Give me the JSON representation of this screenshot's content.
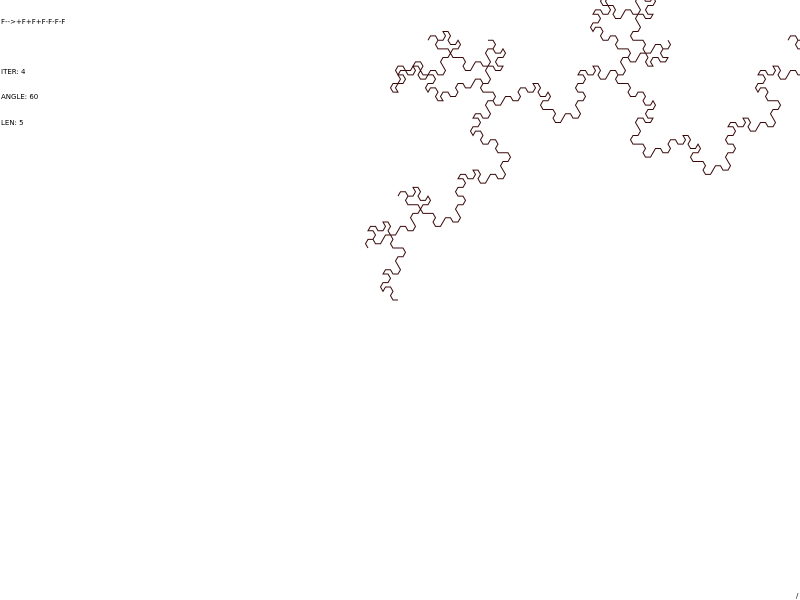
{
  "hud": {
    "rule": "F-->+F+F+F-F-F-F",
    "iter_label": "ITER: 4",
    "angle_label": "ANGLE: 60",
    "len_label": "LEN: 5"
  },
  "lsystem": {
    "axiom": "F",
    "rule_F": "+F+F+F-F-F-F",
    "iterations": 4,
    "angle_deg": 60,
    "segment_length": 5,
    "stroke_color": "#3a0a0a"
  },
  "corner_glyph": "/"
}
